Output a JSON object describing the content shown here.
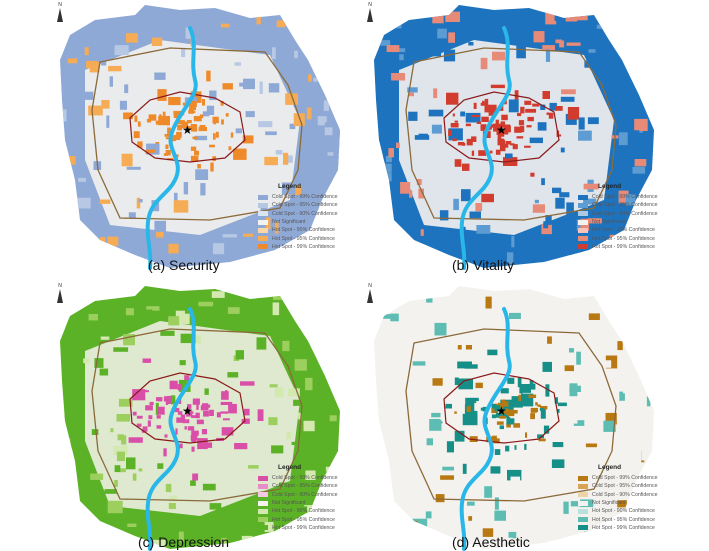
{
  "legend_title": "Legend",
  "legend_items": [
    "Cold Spot - 99% Confidence",
    "Cold Spot - 95% Confidence",
    "Cold Spot - 90% Confidence",
    "Not Significant",
    "Hot Spot - 90% Confidence",
    "Hot Spot - 95% Confidence",
    "Hot Spot - 99% Confidence"
  ],
  "north_label": "N",
  "river_color": "#29b6e8",
  "panels": [
    {
      "caption": "(a) Security",
      "colors": [
        "#8fa9d6",
        "#b7c8e4",
        "#dbe4f1",
        "#f4f2ee",
        "#f9d7a8",
        "#f5ac55",
        "#ef8a2a"
      ],
      "base": "#8fa9d6",
      "hot": "#ef8a2a",
      "hot2": "#f5ac55",
      "cold2": "#b7c8e4"
    },
    {
      "caption": "(b) Vitality",
      "colors": [
        "#1e73be",
        "#5d9bd3",
        "#a9c9e7",
        "#f4f2ee",
        "#f6c3b8",
        "#e88a78",
        "#d23c2e"
      ],
      "base": "#1e73be",
      "hot": "#d23c2e",
      "hot2": "#e88a78",
      "cold2": "#5d9bd3"
    },
    {
      "caption": "(c) Depression",
      "colors": [
        "#d94fa8",
        "#e88dc7",
        "#f4c8e3",
        "#f4f2ee",
        "#d3e9b0",
        "#9dcf5f",
        "#5cb227"
      ],
      "base": "#5cb227",
      "hot": "#d94fa8",
      "hot2": "#9dcf5f",
      "cold2": "#d3e9b0"
    },
    {
      "caption": "(d) Aesthetic",
      "colors": [
        "#b87812",
        "#d7a456",
        "#ecd3a8",
        "#f4f2ee",
        "#b8e1dd",
        "#5dbdb3",
        "#168f88"
      ],
      "base": "#f4f2ee",
      "hot": "#168f88",
      "hot2": "#b87812",
      "cold2": "#5dbdb3"
    }
  ]
}
